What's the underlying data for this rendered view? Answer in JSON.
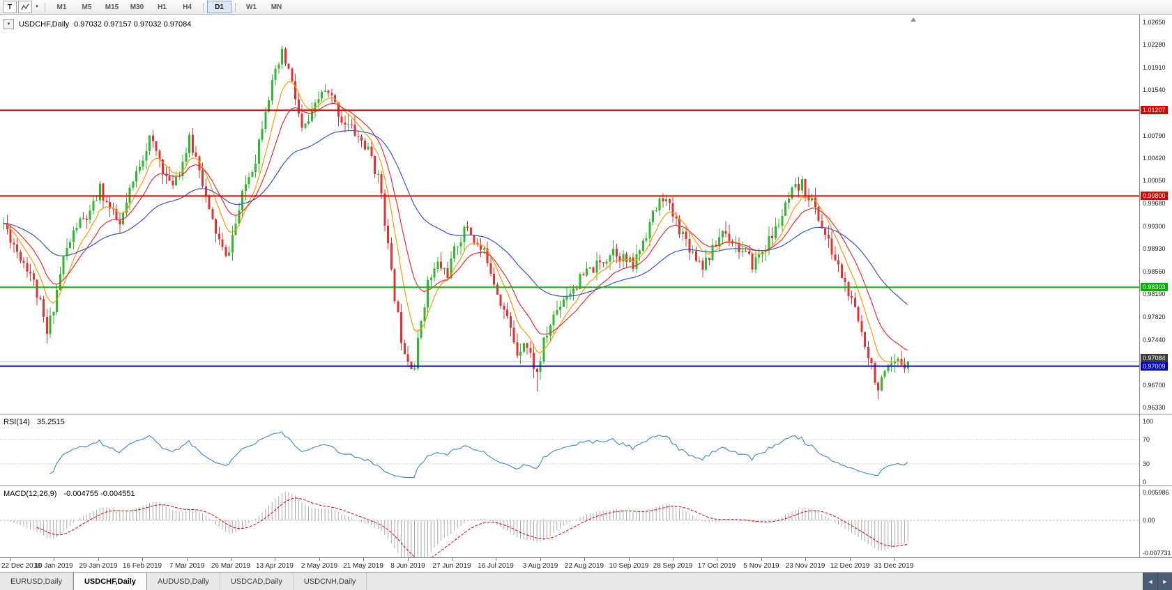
{
  "toolbar": {
    "text_icon": "T",
    "caret_glyph": "▼",
    "timeframes": [
      "M1",
      "M5",
      "M15",
      "M30",
      "H1",
      "H4",
      "D1",
      "W1",
      "MN"
    ],
    "active_timeframe": "D1"
  },
  "chart": {
    "collapse_glyph": "▼",
    "symbol_label": "USDCHF,Daily",
    "ohlc_text": "0.97032 0.97157 0.97032 0.97084"
  },
  "tabs": {
    "items": [
      "EURUSD,Daily",
      "USDCHF,Daily",
      "AUDUSD,Daily",
      "USDCAD,Daily",
      "USDCNH,Daily"
    ],
    "active": "USDCHF,Daily",
    "scroll_left": "◄",
    "scroll_right": "►"
  },
  "chart_data": [
    {
      "type": "candlestick",
      "symbol": "USDCHF",
      "timeframe": "Daily",
      "open": 0.97032,
      "high": 0.97157,
      "low": 0.97032,
      "close": 0.97084,
      "y_axis_labels": [
        "1.02650",
        "1.02280",
        "1.01910",
        "1.01540",
        "1.00790",
        "1.00420",
        "1.00050",
        "0.99680",
        "0.99300",
        "0.98930",
        "0.98560",
        "0.98190",
        "0.97820",
        "0.97440",
        "0.96700",
        "0.96330"
      ],
      "x_axis_dates": [
        "22 Dec 2018",
        "10 Jan 2019",
        "29 Jan 2019",
        "16 Feb 2019",
        "7 Mar 2019",
        "26 Mar 2019",
        "13 Apr 2019",
        "2 May 2019",
        "21 May 2019",
        "8 Jun 2019",
        "27 Jun 2019",
        "16 Jul 2019",
        "3 Aug 2019",
        "22 Aug 2019",
        "10 Sep 2019",
        "28 Sep 2019",
        "17 Oct 2019",
        "5 Nov 2019",
        "23 Nov 2019",
        "12 Dec 2019",
        "31 Dec 2019"
      ],
      "y_range": [
        0.96227,
        1.02787
      ],
      "candle_count": 274,
      "bull_color": "#2eb82e",
      "bear_color": "#e33030",
      "noise_seed": 11,
      "noise_amplitude": 0.0011,
      "wick_amplitude": 0.0016,
      "last_close": 0.97084,
      "trend_anchors": [
        [
          0,
          0.9935
        ],
        [
          4,
          0.989
        ],
        [
          8,
          0.9855
        ],
        [
          11,
          0.98
        ],
        [
          13,
          0.9752
        ],
        [
          15,
          0.98
        ],
        [
          18,
          0.9878
        ],
        [
          22,
          0.9932
        ],
        [
          26,
          0.9948
        ],
        [
          29,
          0.9992
        ],
        [
          32,
          0.9958
        ],
        [
          35,
          0.993
        ],
        [
          38,
          0.9984
        ],
        [
          41,
          1.0034
        ],
        [
          44,
          1.0074
        ],
        [
          47,
          1.004
        ],
        [
          50,
          0.9996
        ],
        [
          53,
          1.0022
        ],
        [
          56,
          1.007
        ],
        [
          59,
          1.003
        ],
        [
          62,
          0.9952
        ],
        [
          65,
          0.9906
        ],
        [
          67,
          0.9876
        ],
        [
          70,
          0.9934
        ],
        [
          73,
          1.0
        ],
        [
          76,
          1.0042
        ],
        [
          79,
          1.0128
        ],
        [
          82,
          1.0178
        ],
        [
          84,
          1.0212
        ],
        [
          86,
          1.0186
        ],
        [
          88,
          1.014
        ],
        [
          90,
          1.0086
        ],
        [
          93,
          1.011
        ],
        [
          96,
          1.0152
        ],
        [
          99,
          1.014
        ],
        [
          102,
          1.0106
        ],
        [
          105,
          1.009
        ],
        [
          108,
          1.007
        ],
        [
          111,
          1.0044
        ],
        [
          114,
          0.9988
        ],
        [
          117,
          0.985
        ],
        [
          120,
          0.9748
        ],
        [
          122,
          0.9714
        ],
        [
          124,
          0.97
        ],
        [
          126,
          0.9778
        ],
        [
          128,
          0.9836
        ],
        [
          131,
          0.9868
        ],
        [
          134,
          0.9854
        ],
        [
          137,
          0.9904
        ],
        [
          140,
          0.993
        ],
        [
          143,
          0.9898
        ],
        [
          146,
          0.9878
        ],
        [
          149,
          0.9824
        ],
        [
          152,
          0.9778
        ],
        [
          155,
          0.9724
        ],
        [
          157,
          0.9744
        ],
        [
          159,
          0.9718
        ],
        [
          161,
          0.9688
        ],
        [
          163,
          0.9738
        ],
        [
          166,
          0.9784
        ],
        [
          169,
          0.9814
        ],
        [
          172,
          0.983
        ],
        [
          176,
          0.9854
        ],
        [
          180,
          0.9868
        ],
        [
          184,
          0.9894
        ],
        [
          187,
          0.9878
        ],
        [
          190,
          0.9864
        ],
        [
          193,
          0.9908
        ],
        [
          196,
          0.9948
        ],
        [
          199,
          0.998
        ],
        [
          202,
          0.9948
        ],
        [
          205,
          0.9918
        ],
        [
          208,
          0.9888
        ],
        [
          211,
          0.9868
        ],
        [
          214,
          0.989
        ],
        [
          217,
          0.9924
        ],
        [
          220,
          0.9908
        ],
        [
          223,
          0.9888
        ],
        [
          226,
          0.9868
        ],
        [
          229,
          0.989
        ],
        [
          232,
          0.9914
        ],
        [
          235,
          0.9948
        ],
        [
          238,
          0.9984
        ],
        [
          241,
          0.9998
        ],
        [
          244,
          0.9972
        ],
        [
          247,
          0.993
        ],
        [
          250,
          0.9888
        ],
        [
          253,
          0.985
        ],
        [
          256,
          0.9804
        ],
        [
          258,
          0.9774
        ],
        [
          260,
          0.974
        ],
        [
          262,
          0.9704
        ],
        [
          264,
          0.9662
        ],
        [
          266,
          0.9684
        ],
        [
          268,
          0.9698
        ],
        [
          270,
          0.9706
        ],
        [
          273,
          0.97084
        ]
      ],
      "extremes": [
        {
          "i": 13,
          "low": 0.9738
        },
        {
          "i": 84,
          "high": 1.0226
        },
        {
          "i": 124,
          "low": 0.9694
        },
        {
          "i": 161,
          "low": 0.9659
        },
        {
          "i": 264,
          "low": 0.9646
        }
      ],
      "moving_averages": [
        {
          "period": 8,
          "color": "#ff9900"
        },
        {
          "period": 16,
          "color": "#e63030"
        },
        {
          "period": 45,
          "color": "#3355cc"
        }
      ],
      "horizontal_lines": [
        {
          "label": "1.01207",
          "value": 1.01207,
          "color": "#dd0000",
          "width": 2,
          "name": "resistance-upper"
        },
        {
          "label": "0.99800",
          "value": 0.998,
          "color": "#dd0000",
          "width": 2,
          "name": "resistance-mid"
        },
        {
          "label": "0.98303",
          "value": 0.98303,
          "color": "#00b200",
          "width": 2,
          "name": "support-green"
        },
        {
          "label": "0.97009",
          "value": 0.97009,
          "color": "#0000cc",
          "width": 2,
          "name": "support-blue"
        }
      ],
      "current_price": {
        "label": "0.97084",
        "value": 0.97084,
        "line_color": "#b8b8b8",
        "badge_color": "#3a3a3a"
      }
    },
    {
      "type": "line",
      "indicator": "RSI",
      "label": "RSI(14)",
      "period": 14,
      "current_value": "35.2515",
      "axis_labels": [
        "100",
        "70",
        "30",
        "0"
      ],
      "level_lines": [
        70,
        30
      ],
      "line_color": "#3c86cc",
      "y_range": [
        0,
        100
      ]
    },
    {
      "type": "macd",
      "indicator": "MACD",
      "label": "MACD(12,26,9)",
      "values_text": "-0.004755 -0.004551",
      "fast_period": 12,
      "slow_period": 26,
      "signal_period": 9,
      "axis_labels": [
        "0.005986",
        "0.00",
        "-0.007731"
      ],
      "histogram_color": "#ababab",
      "signal_color": "#dd0000"
    }
  ]
}
